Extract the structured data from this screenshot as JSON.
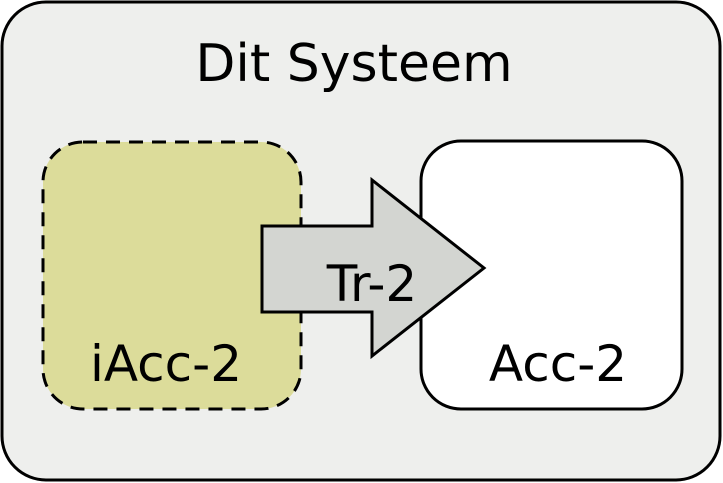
{
  "system": {
    "title": "Dit Systeem",
    "fill": "#eeefed",
    "stroke": "#000000"
  },
  "nodes": {
    "inactive_account": {
      "label": "iAcc-2",
      "fill": "#dcdc9a",
      "border_style": "dashed"
    },
    "account": {
      "label": "Acc-2",
      "fill": "#ffffff",
      "border_style": "solid"
    }
  },
  "transition": {
    "label": "Tr-2",
    "fill": "#d3d5d1"
  }
}
